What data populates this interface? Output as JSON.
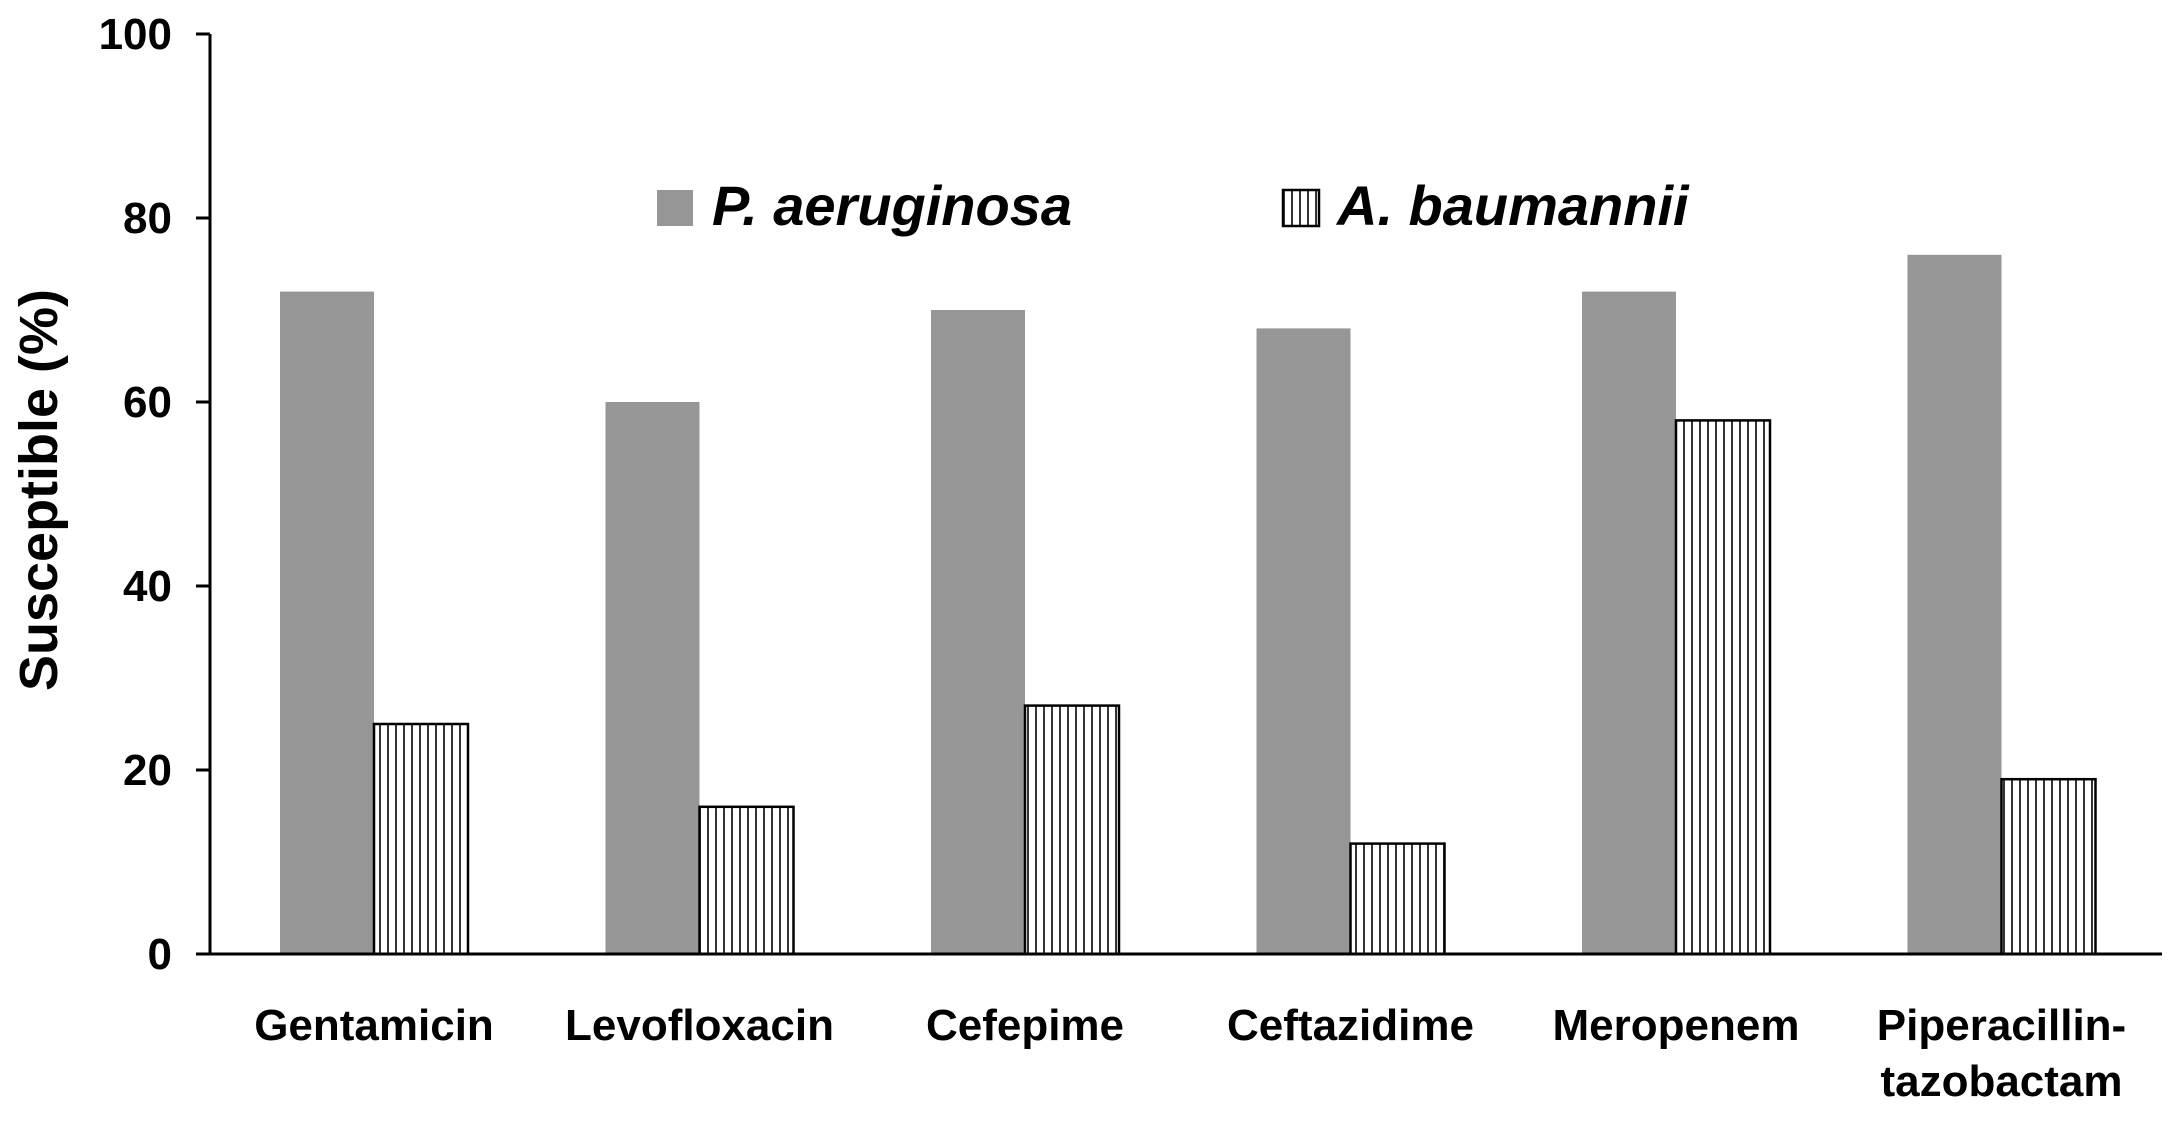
{
  "chart_data": {
    "type": "bar",
    "title": "",
    "xlabel": "",
    "ylabel": "Susceptible (%)",
    "ylim": [
      0,
      100
    ],
    "yticks": [
      "0",
      "20",
      "40",
      "60",
      "80",
      "100"
    ],
    "categories": [
      [
        "Gentamicin"
      ],
      [
        "Levofloxacin"
      ],
      [
        "Cefepime"
      ],
      [
        "Ceftazidime"
      ],
      [
        "Meropenem"
      ],
      [
        "Piperacillin-",
        "tazobactam"
      ]
    ],
    "series": [
      {
        "name": "P. aeruginosa",
        "values": [
          72,
          60,
          70,
          68,
          72,
          76
        ],
        "color": "#969696",
        "pattern": "solid"
      },
      {
        "name": "A. baumannii",
        "values": [
          25,
          16,
          27,
          12,
          58,
          19
        ],
        "color": "#ffffff",
        "pattern": "vertical-lines"
      }
    ],
    "legend": "top-center",
    "grid": false
  }
}
